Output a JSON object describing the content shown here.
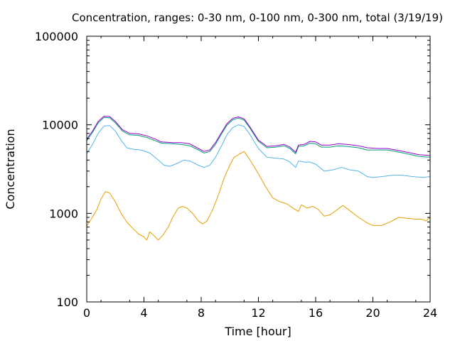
{
  "chart_data": {
    "type": "line",
    "title": "Concentration, ranges: 0-30 nm, 0-100 nm, 0-300 nm, total (3/19/19)",
    "xlabel": "Time [hour]",
    "ylabel": "Concentration",
    "xlim": [
      0,
      24
    ],
    "ylim": [
      100,
      100000
    ],
    "yscale": "log",
    "grid": false,
    "legend": "none",
    "x_ticks": [
      "0",
      "4",
      "8",
      "12",
      "16",
      "20",
      "24"
    ],
    "y_ticks": [
      "100",
      "1000",
      "10000",
      "100000"
    ],
    "series": [
      {
        "color": "#e69f00",
        "points": [
          [
            0,
            720
          ],
          [
            0.3,
            850
          ],
          [
            0.7,
            1100
          ],
          [
            1,
            1450
          ],
          [
            1.3,
            1760
          ],
          [
            1.6,
            1700
          ],
          [
            2,
            1350
          ],
          [
            2.4,
            1000
          ],
          [
            2.8,
            800
          ],
          [
            3.2,
            680
          ],
          [
            3.6,
            590
          ],
          [
            4,
            540
          ],
          [
            4.2,
            500
          ],
          [
            4.4,
            620
          ],
          [
            4.7,
            560
          ],
          [
            5,
            500
          ],
          [
            5.3,
            560
          ],
          [
            5.7,
            700
          ],
          [
            6,
            900
          ],
          [
            6.4,
            1150
          ],
          [
            6.7,
            1200
          ],
          [
            7,
            1150
          ],
          [
            7.4,
            1000
          ],
          [
            7.8,
            820
          ],
          [
            8.1,
            760
          ],
          [
            8.4,
            820
          ],
          [
            8.8,
            1100
          ],
          [
            9.2,
            1600
          ],
          [
            9.6,
            2500
          ],
          [
            10,
            3500
          ],
          [
            10.3,
            4300
          ],
          [
            10.7,
            4700
          ],
          [
            11,
            5000
          ],
          [
            11.2,
            4500
          ],
          [
            11.5,
            3800
          ],
          [
            12,
            2800
          ],
          [
            12.5,
            2000
          ],
          [
            13,
            1500
          ],
          [
            13.5,
            1350
          ],
          [
            14,
            1280
          ],
          [
            14.4,
            1150
          ],
          [
            14.8,
            1050
          ],
          [
            15,
            1250
          ],
          [
            15.4,
            1150
          ],
          [
            15.8,
            1200
          ],
          [
            16.2,
            1100
          ],
          [
            16.6,
            930
          ],
          [
            17,
            960
          ],
          [
            17.5,
            1100
          ],
          [
            17.9,
            1230
          ],
          [
            18.3,
            1100
          ],
          [
            19,
            900
          ],
          [
            19.6,
            780
          ],
          [
            20,
            730
          ],
          [
            20.6,
            730
          ],
          [
            21.2,
            800
          ],
          [
            21.8,
            900
          ],
          [
            22.4,
            880
          ],
          [
            23,
            860
          ],
          [
            23.4,
            860
          ],
          [
            23.7,
            820
          ],
          [
            24,
            900
          ]
        ]
      },
      {
        "color": "#56b4e9",
        "points": [
          [
            0,
            4700
          ],
          [
            0.4,
            6000
          ],
          [
            0.8,
            8000
          ],
          [
            1.2,
            9700
          ],
          [
            1.6,
            9800
          ],
          [
            2,
            8500
          ],
          [
            2.4,
            6700
          ],
          [
            2.8,
            5500
          ],
          [
            3.2,
            5300
          ],
          [
            3.8,
            5200
          ],
          [
            4.4,
            4800
          ],
          [
            5,
            4000
          ],
          [
            5.4,
            3500
          ],
          [
            5.8,
            3400
          ],
          [
            6.2,
            3600
          ],
          [
            6.8,
            4000
          ],
          [
            7.2,
            3900
          ],
          [
            7.8,
            3500
          ],
          [
            8.2,
            3300
          ],
          [
            8.6,
            3500
          ],
          [
            9,
            4300
          ],
          [
            9.4,
            5700
          ],
          [
            9.8,
            7700
          ],
          [
            10.2,
            9300
          ],
          [
            10.6,
            10000
          ],
          [
            11,
            9600
          ],
          [
            11.4,
            7800
          ],
          [
            12,
            5400
          ],
          [
            12.6,
            4300
          ],
          [
            13.2,
            4200
          ],
          [
            13.8,
            4100
          ],
          [
            14.2,
            3800
          ],
          [
            14.6,
            3300
          ],
          [
            14.8,
            3900
          ],
          [
            15.2,
            3800
          ],
          [
            15.6,
            3800
          ],
          [
            16,
            3600
          ],
          [
            16.6,
            3000
          ],
          [
            17.2,
            3100
          ],
          [
            17.8,
            3300
          ],
          [
            18.4,
            3100
          ],
          [
            19,
            3000
          ],
          [
            19.6,
            2600
          ],
          [
            20,
            2550
          ],
          [
            20.6,
            2600
          ],
          [
            21.4,
            2700
          ],
          [
            22,
            2700
          ],
          [
            22.8,
            2600
          ],
          [
            23.5,
            2550
          ],
          [
            24,
            2600
          ]
        ]
      },
      {
        "color": "#009e73",
        "points": [
          [
            0,
            6600
          ],
          [
            0.4,
            8200
          ],
          [
            0.8,
            10500
          ],
          [
            1.2,
            12100
          ],
          [
            1.6,
            12000
          ],
          [
            2,
            10500
          ],
          [
            2.5,
            8500
          ],
          [
            3,
            7700
          ],
          [
            3.6,
            7600
          ],
          [
            4.2,
            7200
          ],
          [
            4.8,
            6600
          ],
          [
            5.2,
            6200
          ],
          [
            6,
            6100
          ],
          [
            6.6,
            6000
          ],
          [
            7.2,
            5800
          ],
          [
            7.8,
            5200
          ],
          [
            8.2,
            4800
          ],
          [
            8.6,
            5000
          ],
          [
            9,
            6000
          ],
          [
            9.4,
            7800
          ],
          [
            9.8,
            9900
          ],
          [
            10.2,
            11400
          ],
          [
            10.6,
            11900
          ],
          [
            11,
            11300
          ],
          [
            11.4,
            9200
          ],
          [
            12,
            6500
          ],
          [
            12.6,
            5500
          ],
          [
            13.2,
            5600
          ],
          [
            13.8,
            5800
          ],
          [
            14.2,
            5400
          ],
          [
            14.6,
            4700
          ],
          [
            14.8,
            5700
          ],
          [
            15.2,
            5800
          ],
          [
            15.6,
            6200
          ],
          [
            16,
            6100
          ],
          [
            16.4,
            5600
          ],
          [
            17,
            5600
          ],
          [
            17.6,
            5800
          ],
          [
            18.2,
            5700
          ],
          [
            19,
            5500
          ],
          [
            19.6,
            5200
          ],
          [
            20.4,
            5200
          ],
          [
            21,
            5200
          ],
          [
            21.6,
            5000
          ],
          [
            22.4,
            4700
          ],
          [
            23.2,
            4400
          ],
          [
            24,
            4300
          ]
        ]
      },
      {
        "color": "#9400d3",
        "points": [
          [
            0,
            6900
          ],
          [
            0.4,
            8500
          ],
          [
            0.8,
            10900
          ],
          [
            1.2,
            12500
          ],
          [
            1.6,
            12400
          ],
          [
            2,
            10900
          ],
          [
            2.5,
            8800
          ],
          [
            3,
            8000
          ],
          [
            3.6,
            7900
          ],
          [
            4.2,
            7500
          ],
          [
            4.8,
            6900
          ],
          [
            5.2,
            6400
          ],
          [
            6,
            6300
          ],
          [
            6.6,
            6300
          ],
          [
            7.2,
            6100
          ],
          [
            7.8,
            5400
          ],
          [
            8.2,
            5000
          ],
          [
            8.6,
            5200
          ],
          [
            9,
            6300
          ],
          [
            9.4,
            8100
          ],
          [
            9.8,
            10300
          ],
          [
            10.2,
            11800
          ],
          [
            10.6,
            12300
          ],
          [
            11,
            11700
          ],
          [
            11.4,
            9500
          ],
          [
            12,
            6700
          ],
          [
            12.6,
            5700
          ],
          [
            13.2,
            5800
          ],
          [
            13.8,
            6000
          ],
          [
            14.2,
            5600
          ],
          [
            14.6,
            4900
          ],
          [
            14.8,
            5900
          ],
          [
            15.2,
            6000
          ],
          [
            15.6,
            6500
          ],
          [
            16,
            6400
          ],
          [
            16.4,
            5900
          ],
          [
            17,
            5900
          ],
          [
            17.6,
            6100
          ],
          [
            18.2,
            6000
          ],
          [
            19,
            5800
          ],
          [
            19.6,
            5500
          ],
          [
            20.4,
            5400
          ],
          [
            21,
            5400
          ],
          [
            21.6,
            5200
          ],
          [
            22.4,
            4900
          ],
          [
            23.2,
            4600
          ],
          [
            24,
            4500
          ]
        ]
      }
    ]
  }
}
